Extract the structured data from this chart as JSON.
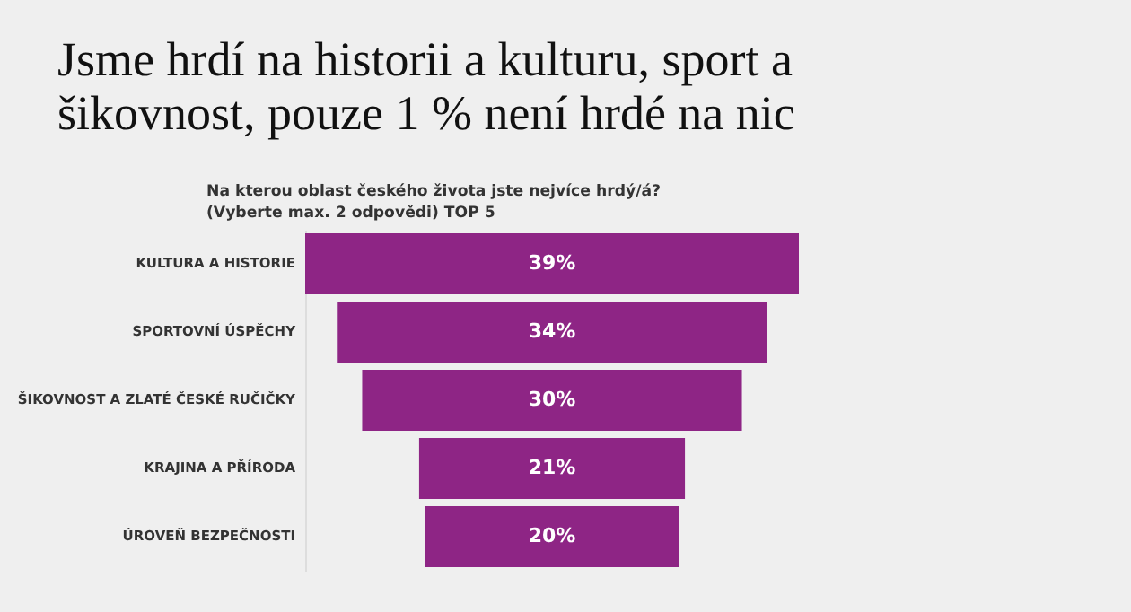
{
  "chart_data": {
    "type": "other",
    "title": "Jsme hrdí na historii a kulturu, sport a šikovnost, pouze 1 % není hrdé na nic",
    "subtitle": "Na kterou oblast českého života jste nejvíce hrdý/á?\n(Vyberte max. 2 odpovědi) TOP 5",
    "categories": [
      "KULTURA A HISTORIE",
      "SPORTOVNÍ ÚSPĚCHY",
      "ŠIKOVNOST A ZLATÉ ČESKÉ RUČIČKY",
      "KRAJINA A PŘÍRODA",
      "ÚROVEŇ BEZPEČNOSTI"
    ],
    "values": [
      39,
      34,
      30,
      21,
      20
    ],
    "value_labels": [
      "39%",
      "34%",
      "30%",
      "21%",
      "20%"
    ],
    "color": "#8e2585"
  }
}
